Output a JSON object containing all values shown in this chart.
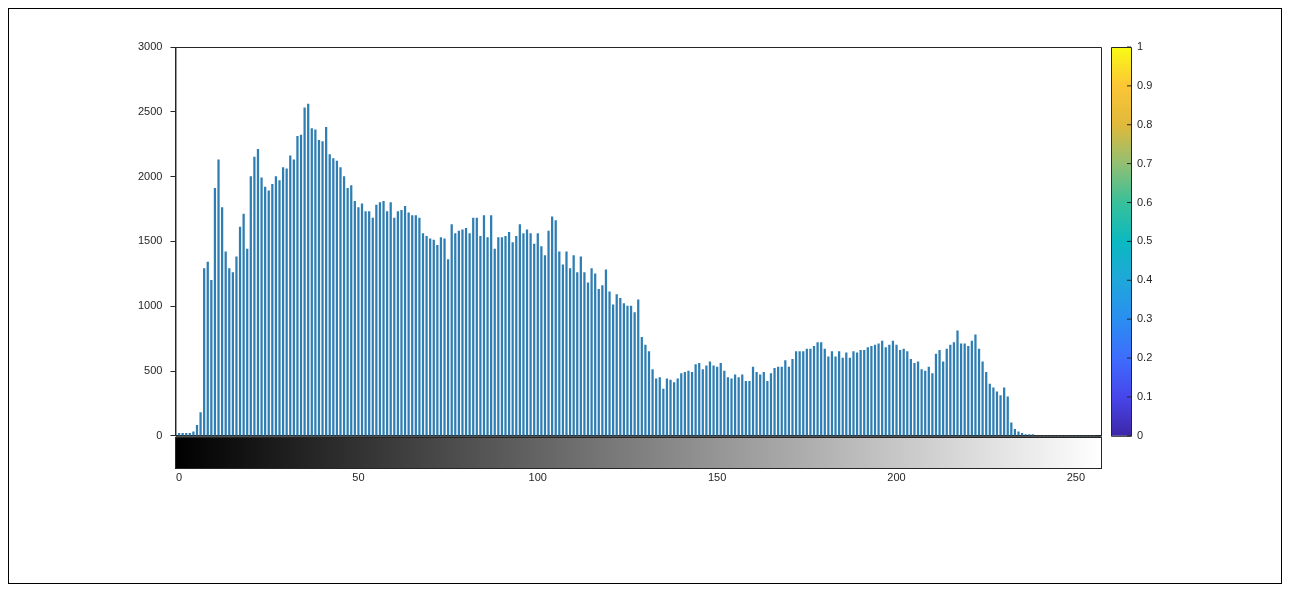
{
  "chart_data": {
    "type": "histogram",
    "bins": [
      -0.5,
      0.5,
      1.5,
      2.5,
      3.5,
      4.5,
      5.5,
      6.5,
      7.5,
      8.5,
      9.5,
      10.5,
      11.5,
      12.5,
      13.5,
      14.5,
      15.5,
      16.5,
      17.5,
      18.5,
      19.5,
      20.5,
      21.5,
      22.5,
      23.5,
      24.5,
      25.5,
      26.5,
      27.5,
      28.5,
      29.5,
      30.5,
      31.5,
      32.5,
      33.5,
      34.5,
      35.5,
      36.5,
      37.5,
      38.5,
      39.5,
      40.5,
      41.5,
      42.5,
      43.5,
      44.5,
      45.5,
      46.5,
      47.5,
      48.5,
      49.5,
      50.5,
      51.5,
      52.5,
      53.5,
      54.5,
      55.5,
      56.5,
      57.5,
      58.5,
      59.5,
      60.5,
      61.5,
      62.5,
      63.5,
      64.5,
      65.5,
      66.5,
      67.5,
      68.5,
      69.5,
      70.5,
      71.5,
      72.5,
      73.5,
      74.5,
      75.5,
      76.5,
      77.5,
      78.5,
      79.5,
      80.5,
      81.5,
      82.5,
      83.5,
      84.5,
      85.5,
      86.5,
      87.5,
      88.5,
      89.5,
      90.5,
      91.5,
      92.5,
      93.5,
      94.5,
      95.5,
      96.5,
      97.5,
      98.5,
      99.5,
      100.5,
      101.5,
      102.5,
      103.5,
      104.5,
      105.5,
      106.5,
      107.5,
      108.5,
      109.5,
      110.5,
      111.5,
      112.5,
      113.5,
      114.5,
      115.5,
      116.5,
      117.5,
      118.5,
      119.5,
      120.5,
      121.5,
      122.5,
      123.5,
      124.5,
      125.5,
      126.5,
      127.5,
      128.5,
      129.5,
      130.5,
      131.5,
      132.5,
      133.5,
      134.5,
      135.5,
      136.5,
      137.5,
      138.5,
      139.5,
      140.5,
      141.5,
      142.5,
      143.5,
      144.5,
      145.5,
      146.5,
      147.5,
      148.5,
      149.5,
      150.5,
      151.5,
      152.5,
      153.5,
      154.5,
      155.5,
      156.5,
      157.5,
      158.5,
      159.5,
      160.5,
      161.5,
      162.5,
      163.5,
      164.5,
      165.5,
      166.5,
      167.5,
      168.5,
      169.5,
      170.5,
      171.5,
      172.5,
      173.5,
      174.5,
      175.5,
      176.5,
      177.5,
      178.5,
      179.5,
      180.5,
      181.5,
      182.5,
      183.5,
      184.5,
      185.5,
      186.5,
      187.5,
      188.5,
      189.5,
      190.5,
      191.5,
      192.5,
      193.5,
      194.5,
      195.5,
      196.5,
      197.5,
      198.5,
      199.5,
      200.5,
      201.5,
      202.5,
      203.5,
      204.5,
      205.5,
      206.5,
      207.5,
      208.5,
      209.5,
      210.5,
      211.5,
      212.5,
      213.5,
      214.5,
      215.5,
      216.5,
      217.5,
      218.5,
      219.5,
      220.5,
      221.5,
      222.5,
      223.5,
      224.5,
      225.5,
      226.5,
      227.5,
      228.5,
      229.5,
      230.5,
      231.5,
      232.5,
      233.5,
      234.5,
      235.5,
      236.5,
      237.5,
      238.5,
      239.5,
      240.5,
      241.5,
      242.5,
      243.5,
      244.5,
      245.5,
      246.5,
      247.5,
      248.5,
      249.5,
      250.5,
      251.5,
      252.5,
      253.5,
      254.5,
      255.5
    ],
    "values": [
      20,
      20,
      20,
      20,
      30,
      80,
      180,
      1290,
      1340,
      1200,
      1910,
      2130,
      1760,
      1420,
      1290,
      1260,
      1380,
      1610,
      1710,
      1440,
      2000,
      2150,
      2210,
      1990,
      1920,
      1890,
      1940,
      2000,
      1970,
      2070,
      2060,
      2160,
      2130,
      2310,
      2320,
      2530,
      2560,
      2370,
      2360,
      2280,
      2270,
      2380,
      2170,
      2140,
      2120,
      2070,
      2000,
      1910,
      1930,
      1810,
      1760,
      1790,
      1730,
      1730,
      1680,
      1780,
      1800,
      1810,
      1730,
      1800,
      1680,
      1730,
      1740,
      1770,
      1720,
      1700,
      1700,
      1680,
      1560,
      1540,
      1520,
      1510,
      1470,
      1530,
      1520,
      1360,
      1630,
      1560,
      1580,
      1590,
      1600,
      1560,
      1680,
      1680,
      1540,
      1700,
      1530,
      1700,
      1440,
      1530,
      1530,
      1540,
      1570,
      1490,
      1540,
      1630,
      1560,
      1590,
      1560,
      1480,
      1560,
      1460,
      1390,
      1580,
      1690,
      1660,
      1420,
      1320,
      1420,
      1290,
      1390,
      1260,
      1380,
      1260,
      1180,
      1290,
      1250,
      1130,
      1160,
      1280,
      1110,
      1010,
      1090,
      1060,
      1020,
      1000,
      1000,
      950,
      1050,
      760,
      700,
      650,
      510,
      440,
      450,
      360,
      440,
      430,
      410,
      440,
      480,
      490,
      500,
      490,
      550,
      560,
      510,
      540,
      570,
      540,
      530,
      560,
      500,
      450,
      440,
      470,
      450,
      470,
      420,
      420,
      530,
      490,
      470,
      490,
      420,
      480,
      520,
      530,
      530,
      580,
      530,
      590,
      650,
      650,
      650,
      670,
      670,
      690,
      720,
      720,
      670,
      610,
      650,
      610,
      650,
      600,
      640,
      600,
      650,
      640,
      660,
      660,
      680,
      690,
      700,
      710,
      730,
      680,
      700,
      730,
      700,
      660,
      670,
      650,
      590,
      560,
      570,
      510,
      500,
      530,
      480,
      630,
      660,
      570,
      670,
      700,
      720,
      810,
      710,
      710,
      690,
      730,
      780,
      670,
      570,
      490,
      400,
      370,
      340,
      310,
      370,
      300,
      100,
      50,
      30,
      20,
      10,
      10,
      10,
      0,
      0,
      0,
      0,
      0,
      0,
      0,
      0,
      0,
      0,
      0,
      0,
      0,
      0,
      0,
      0,
      0
    ],
    "color": "#2e7eb3",
    "xlim": [
      -1,
      257
    ],
    "xticks": [
      0,
      50,
      100,
      150,
      200,
      250
    ],
    "ylim": [
      0,
      3000
    ],
    "yticks": [
      0,
      500,
      1000,
      1500,
      2000,
      2500,
      3000
    ],
    "clim": [
      0,
      1
    ],
    "cticks": [
      0,
      0.1,
      0.2,
      0.3,
      0.4,
      0.5,
      0.6,
      0.7,
      0.8,
      0.9,
      1
    ],
    "grid": false,
    "legend": false
  }
}
